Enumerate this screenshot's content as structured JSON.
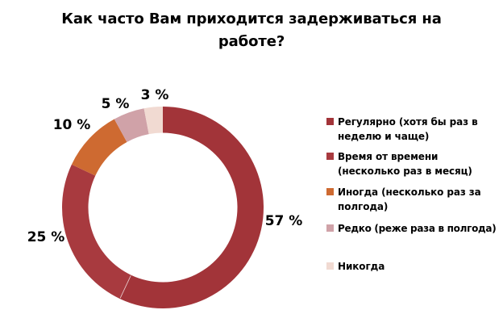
{
  "chart_data": {
    "type": "pie",
    "donut": true,
    "hole_ratio": 0.74,
    "title": "Как часто Вам приходится задерживаться на работе?",
    "categories": [
      "Регулярно (хотя бы раз в неделю и чаще)",
      "Время от времени (несколько раз в месяц)",
      "Иногда (несколько раз за полгода)",
      "Редко (реже раза в полгода)",
      "Никогда"
    ],
    "values": [
      57,
      25,
      10,
      5,
      3
    ],
    "value_labels": [
      "57 %",
      "25 %",
      "10 %",
      "5 %",
      "3 %"
    ],
    "colors": [
      "#A23439",
      "#A83A3F",
      "#CE6A31",
      "#D0A2A8",
      "#F1DAD2"
    ],
    "start_angle": 0,
    "direction": "clockwise",
    "legend_position": "right",
    "label_color": "#000000",
    "background": "#FFFFFF"
  }
}
